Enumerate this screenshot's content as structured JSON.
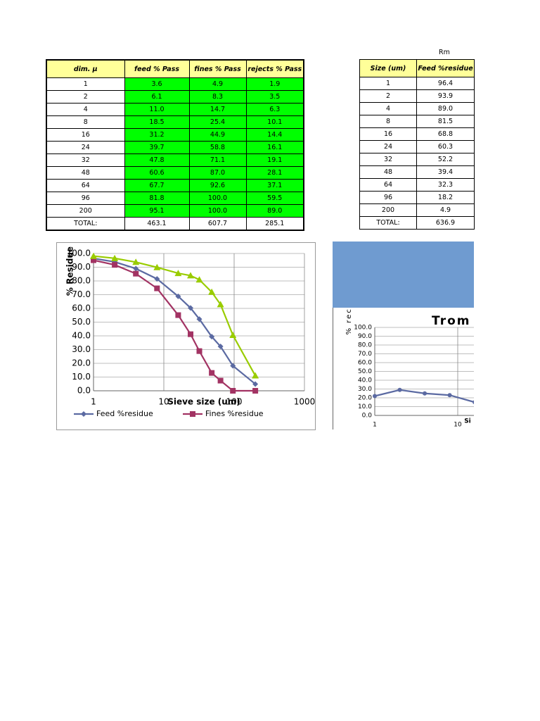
{
  "table1": {
    "headers": [
      "dim. μ",
      "feed % Pass",
      "fines % Pass",
      "rejects % Pass"
    ],
    "rows": [
      [
        "1",
        "3.6",
        "4.9",
        "1.9"
      ],
      [
        "2",
        "6.1",
        "8.3",
        "3.5"
      ],
      [
        "4",
        "11.0",
        "14.7",
        "6.3"
      ],
      [
        "8",
        "18.5",
        "25.4",
        "10.1"
      ],
      [
        "16",
        "31.2",
        "44.9",
        "14.4"
      ],
      [
        "24",
        "39.7",
        "58.8",
        "16.1"
      ],
      [
        "32",
        "47.8",
        "71.1",
        "19.1"
      ],
      [
        "48",
        "60.6",
        "87.0",
        "28.1"
      ],
      [
        "64",
        "67.7",
        "92.6",
        "37.1"
      ],
      [
        "96",
        "81.8",
        "100.0",
        "59.5"
      ],
      [
        "200",
        "95.1",
        "100.0",
        "89.0"
      ]
    ],
    "total": [
      "TOTAL:",
      "463.1",
      "607.7",
      "285.1"
    ]
  },
  "table2": {
    "caption": "Rm",
    "headers": [
      "Size (um)",
      "Feed %residue"
    ],
    "rows": [
      [
        "1",
        "96.4"
      ],
      [
        "2",
        "93.9"
      ],
      [
        "4",
        "89.0"
      ],
      [
        "8",
        "81.5"
      ],
      [
        "16",
        "68.8"
      ],
      [
        "24",
        "60.3"
      ],
      [
        "32",
        "52.2"
      ],
      [
        "48",
        "39.4"
      ],
      [
        "64",
        "32.3"
      ],
      [
        "96",
        "18.2"
      ],
      [
        "200",
        "4.9"
      ]
    ],
    "total": [
      "TOTAL:",
      "636.9"
    ]
  },
  "chart_data": [
    {
      "type": "line",
      "x_label": "Sieve size (um)",
      "y_label": "% Residue",
      "x_scale": "log",
      "grid": true,
      "legend": "bottom",
      "x": [
        1,
        2,
        4,
        8,
        16,
        24,
        32,
        48,
        64,
        96,
        200
      ],
      "series": [
        {
          "name": "Feed %residue",
          "color": "#5b6aa2",
          "marker": "diamond",
          "values": [
            96.4,
            93.9,
            89.0,
            81.5,
            68.8,
            60.3,
            52.2,
            39.4,
            32.3,
            18.2,
            4.9
          ]
        },
        {
          "name": "Fines %residue",
          "color": "#a23363",
          "marker": "square",
          "values": [
            95.1,
            91.7,
            85.3,
            74.6,
            55.1,
            41.2,
            28.9,
            13.0,
            7.4,
            0,
            0
          ]
        },
        {
          "color": "#99cc00",
          "marker": "triangle",
          "values": [
            98.1,
            96.5,
            93.7,
            89.9,
            85.6,
            83.9,
            80.9,
            71.9,
            62.9,
            40.5,
            11.0
          ]
        }
      ],
      "xlim": [
        1,
        1000
      ],
      "xticks": [
        1,
        10,
        100,
        1000
      ],
      "ylim": [
        0,
        100
      ],
      "yticks": [
        {
          "value": 0,
          "label": "0.0"
        },
        {
          "value": 10,
          "label": "10.0"
        },
        {
          "value": 20,
          "label": "20.0"
        },
        {
          "value": 30,
          "label": "30.0"
        },
        {
          "value": 40,
          "label": "40.0"
        },
        {
          "value": 50,
          "label": "50.0"
        },
        {
          "value": 60,
          "label": "60.0"
        },
        {
          "value": 70,
          "label": "70.0"
        },
        {
          "value": 80,
          "label": "80.0"
        },
        {
          "value": 90,
          "label": "90.0"
        },
        {
          "value": 100,
          "label": "100.0"
        }
      ]
    },
    {
      "type": "line",
      "title": "Trom",
      "x_label": "Si",
      "y_label": "% recovery to return (reject)",
      "x_scale": "log",
      "grid": true,
      "x": [
        1,
        2,
        4,
        8,
        16
      ],
      "series": [
        {
          "color": "#5b6aa2",
          "marker": "circle",
          "values": [
            22,
            29,
            25,
            23,
            15
          ]
        }
      ],
      "xlim": [
        1,
        100
      ],
      "xticks": [
        1,
        10
      ],
      "ylim": [
        0,
        100
      ],
      "yticks": [
        {
          "value": 0,
          "label": "0.0"
        },
        {
          "value": 10,
          "label": "10.0"
        },
        {
          "value": 20,
          "label": "20.0"
        },
        {
          "value": 30,
          "label": "30.0"
        },
        {
          "value": 40,
          "label": "40.0"
        },
        {
          "value": 50,
          "label": "50.0"
        },
        {
          "value": 60,
          "label": "60.0"
        },
        {
          "value": 70,
          "label": "70.0"
        },
        {
          "value": 80,
          "label": "80.0"
        },
        {
          "value": 90,
          "label": "90.0"
        },
        {
          "value": 100,
          "label": "100.0"
        }
      ]
    }
  ]
}
